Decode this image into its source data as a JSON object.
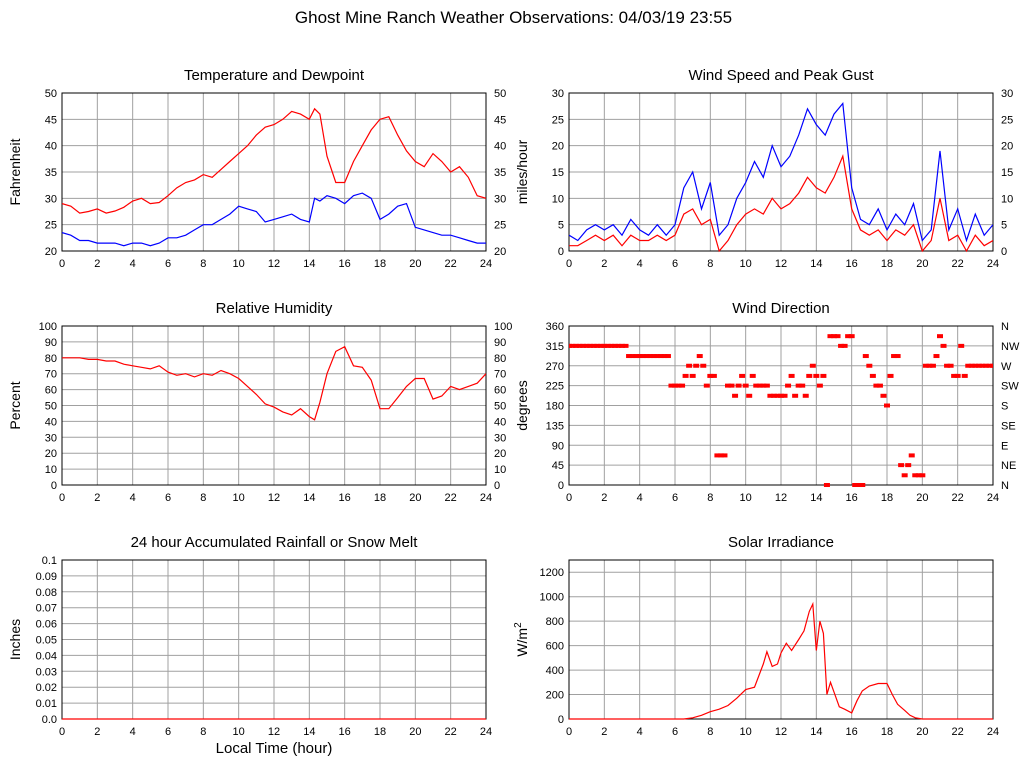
{
  "page_title": "Ghost Mine Ranch Weather Observations: 04/03/19 23:55",
  "colors": {
    "red": "#ff0000",
    "blue": "#0000ff",
    "grid": "#a0a0a0",
    "axis": "#000000"
  },
  "chart_data": [
    {
      "id": "temp",
      "type": "line",
      "title": "Temperature and Dewpoint",
      "xlabel": "",
      "ylabel": "Fahrenheit",
      "xlim": [
        0,
        24
      ],
      "ylim": [
        20,
        50
      ],
      "xticks": [
        "0",
        "2",
        "4",
        "6",
        "8",
        "10",
        "12",
        "14",
        "16",
        "18",
        "20",
        "22",
        "24"
      ],
      "yticks": [
        "20",
        "25",
        "30",
        "35",
        "40",
        "45",
        "50"
      ],
      "right_ticks": [
        "20",
        "25",
        "30",
        "35",
        "40",
        "45",
        "50"
      ],
      "grid": true,
      "series": [
        {
          "color": "#ff0000",
          "x": [
            0,
            0.5,
            1,
            1.5,
            2,
            2.5,
            3,
            3.5,
            4,
            4.5,
            5,
            5.5,
            6,
            6.5,
            7,
            7.5,
            8,
            8.5,
            9,
            9.5,
            10,
            10.5,
            11,
            11.5,
            12,
            12.5,
            13,
            13.5,
            14,
            14.3,
            14.6,
            15,
            15.5,
            16,
            16.5,
            17,
            17.5,
            18,
            18.5,
            19,
            19.5,
            20,
            20.5,
            21,
            21.5,
            22,
            22.5,
            23,
            23.5,
            24
          ],
          "y": [
            29,
            28.5,
            27.2,
            27.5,
            28,
            27.2,
            27.6,
            28.3,
            29.5,
            30,
            29,
            29.2,
            30.5,
            32,
            33,
            33.5,
            34.5,
            34,
            35.5,
            37,
            38.5,
            40,
            42,
            43.5,
            44,
            45,
            46.5,
            46,
            45,
            47,
            46,
            38,
            33,
            33,
            37,
            40,
            43,
            45,
            45.5,
            42,
            39,
            37,
            36,
            38.5,
            37,
            35,
            36,
            34,
            30.5,
            30
          ]
        },
        {
          "color": "#0000ff",
          "x": [
            0,
            0.5,
            1,
            1.5,
            2,
            2.5,
            3,
            3.5,
            4,
            4.5,
            5,
            5.5,
            6,
            6.5,
            7,
            7.5,
            8,
            8.5,
            9,
            9.5,
            10,
            10.5,
            11,
            11.5,
            12,
            12.5,
            13,
            13.5,
            14,
            14.3,
            14.6,
            15,
            15.5,
            16,
            16.5,
            17,
            17.5,
            18,
            18.5,
            19,
            19.5,
            20,
            20.5,
            21,
            21.5,
            22,
            22.5,
            23,
            23.5,
            24
          ],
          "y": [
            23.5,
            23,
            22,
            22,
            21.5,
            21.5,
            21.5,
            21,
            21.5,
            21.5,
            21,
            21.5,
            22.5,
            22.5,
            23,
            24,
            25,
            25,
            26,
            27,
            28.5,
            28,
            27.5,
            25.5,
            26,
            26.5,
            27,
            26,
            25.5,
            30,
            29.5,
            30.5,
            30,
            29,
            30.5,
            31,
            30,
            26,
            27,
            28.5,
            29,
            24.5,
            24,
            23.5,
            23,
            23,
            22.5,
            22,
            21.5,
            21.5
          ]
        }
      ]
    },
    {
      "id": "wind",
      "type": "line",
      "title": "Wind Speed and Peak Gust",
      "xlabel": "",
      "ylabel": "miles/hour",
      "xlim": [
        0,
        24
      ],
      "ylim": [
        0,
        30
      ],
      "xticks": [
        "0",
        "2",
        "4",
        "6",
        "8",
        "10",
        "12",
        "14",
        "16",
        "18",
        "20",
        "22",
        "24"
      ],
      "yticks": [
        "0",
        "5",
        "10",
        "15",
        "20",
        "25",
        "30"
      ],
      "right_ticks": [
        "0",
        "5",
        "10",
        "15",
        "20",
        "25",
        "30"
      ],
      "grid": true,
      "series": [
        {
          "color": "#0000ff",
          "x": [
            0,
            0.5,
            1,
            1.5,
            2,
            2.5,
            3,
            3.5,
            4,
            4.5,
            5,
            5.5,
            6,
            6.5,
            7,
            7.5,
            8,
            8.5,
            9,
            9.5,
            10,
            10.5,
            11,
            11.5,
            12,
            12.5,
            13,
            13.5,
            14,
            14.5,
            15,
            15.5,
            16,
            16.5,
            17,
            17.5,
            18,
            18.5,
            19,
            19.5,
            20,
            20.5,
            21,
            21.5,
            22,
            22.5,
            23,
            23.5,
            24
          ],
          "y": [
            3,
            2,
            4,
            5,
            4,
            5,
            3,
            6,
            4,
            3,
            5,
            3,
            5,
            12,
            15,
            8,
            13,
            3,
            5,
            10,
            13,
            17,
            14,
            20,
            16,
            18,
            22,
            27,
            24,
            22,
            26,
            28,
            12,
            6,
            5,
            8,
            4,
            7,
            5,
            9,
            2,
            4,
            19,
            4,
            8,
            2,
            7,
            3,
            5
          ]
        },
        {
          "color": "#ff0000",
          "x": [
            0,
            0.5,
            1,
            1.5,
            2,
            2.5,
            3,
            3.5,
            4,
            4.5,
            5,
            5.5,
            6,
            6.5,
            7,
            7.5,
            8,
            8.5,
            9,
            9.5,
            10,
            10.5,
            11,
            11.5,
            12,
            12.5,
            13,
            13.5,
            14,
            14.5,
            15,
            15.5,
            16,
            16.5,
            17,
            17.5,
            18,
            18.5,
            19,
            19.5,
            20,
            20.5,
            21,
            21.5,
            22,
            22.5,
            23,
            23.5,
            24
          ],
          "y": [
            1,
            1,
            2,
            3,
            2,
            3,
            1,
            3,
            2,
            2,
            3,
            2,
            3,
            7,
            8,
            5,
            6,
            0,
            2,
            5,
            7,
            8,
            7,
            10,
            8,
            9,
            11,
            14,
            12,
            11,
            14,
            18,
            8,
            4,
            3,
            4,
            2,
            4,
            3,
            5,
            0,
            2,
            10,
            2,
            3,
            0,
            3,
            1,
            2
          ]
        }
      ]
    },
    {
      "id": "rh",
      "type": "line",
      "title": "Relative Humidity",
      "xlabel": "",
      "ylabel": "Percent",
      "xlim": [
        0,
        24
      ],
      "ylim": [
        0,
        100
      ],
      "xticks": [
        "0",
        "2",
        "4",
        "6",
        "8",
        "10",
        "12",
        "14",
        "16",
        "18",
        "20",
        "22",
        "24"
      ],
      "yticks": [
        "0",
        "10",
        "20",
        "30",
        "40",
        "50",
        "60",
        "70",
        "80",
        "90",
        "100"
      ],
      "right_ticks": [
        "0",
        "10",
        "20",
        "30",
        "40",
        "50",
        "60",
        "70",
        "80",
        "90",
        "100"
      ],
      "grid": true,
      "series": [
        {
          "color": "#ff0000",
          "x": [
            0,
            0.5,
            1,
            1.5,
            2,
            2.5,
            3,
            3.5,
            4,
            4.5,
            5,
            5.5,
            6,
            6.5,
            7,
            7.5,
            8,
            8.5,
            9,
            9.5,
            10,
            10.5,
            11,
            11.5,
            12,
            12.5,
            13,
            13.5,
            14,
            14.3,
            14.6,
            15,
            15.5,
            16,
            16.5,
            17,
            17.5,
            18,
            18.5,
            19,
            19.5,
            20,
            20.5,
            21,
            21.5,
            22,
            22.5,
            23,
            23.5,
            24
          ],
          "y": [
            80,
            80,
            80,
            79,
            79,
            78,
            78,
            76,
            75,
            74,
            73,
            75,
            71,
            69,
            70,
            68,
            70,
            69,
            72,
            70,
            67,
            62,
            57,
            51,
            49,
            46,
            44,
            48,
            43,
            41,
            52,
            70,
            84,
            87,
            75,
            74,
            66,
            48,
            48,
            55,
            62,
            67,
            67,
            54,
            56,
            62,
            60,
            62,
            64,
            70
          ]
        }
      ]
    },
    {
      "id": "dir",
      "type": "scatter",
      "title": "Wind Direction",
      "xlabel": "",
      "ylabel": "degrees",
      "xlim": [
        0,
        24
      ],
      "ylim": [
        0,
        360
      ],
      "xticks": [
        "0",
        "2",
        "4",
        "6",
        "8",
        "10",
        "12",
        "14",
        "16",
        "18",
        "20",
        "22",
        "24"
      ],
      "yticks": [
        "0",
        "45",
        "90",
        "135",
        "180",
        "225",
        "270",
        "315",
        "360"
      ],
      "right_ticks": [
        "N",
        "NE",
        "E",
        "SE",
        "S",
        "SW",
        "W",
        "NW",
        "N"
      ],
      "grid": true,
      "series": [
        {
          "color": "#ff0000",
          "x": [
            0,
            0.2,
            0.4,
            0.6,
            0.8,
            1,
            1.2,
            1.4,
            1.6,
            1.8,
            2,
            2.2,
            2.4,
            2.6,
            2.8,
            3,
            3.2,
            3.4,
            3.6,
            3.8,
            4,
            4.2,
            4.4,
            4.6,
            4.8,
            5,
            5.2,
            5.4,
            5.6,
            5.8,
            6,
            6.2,
            6.4,
            6.6,
            6.8,
            7,
            7.2,
            7.4,
            7.6,
            7.8,
            8,
            8.2,
            8.4,
            8.6,
            8.8,
            9,
            9.2,
            9.4,
            9.6,
            9.8,
            10,
            10.2,
            10.4,
            10.6,
            10.8,
            11,
            11.2,
            11.4,
            11.6,
            11.8,
            12,
            12.2,
            12.4,
            12.6,
            12.8,
            13,
            13.2,
            13.4,
            13.6,
            13.8,
            14,
            14.2,
            14.4,
            14.6,
            14.8,
            15,
            15.2,
            15.4,
            15.6,
            15.8,
            16,
            16.2,
            16.4,
            16.6,
            16.8,
            17,
            17.2,
            17.4,
            17.6,
            17.8,
            18,
            18.2,
            18.4,
            18.6,
            18.8,
            19,
            19.2,
            19.4,
            19.6,
            19.8,
            20,
            20.2,
            20.4,
            20.6,
            20.8,
            21,
            21.2,
            21.4,
            21.6,
            21.8,
            22,
            22.2,
            22.4,
            22.6,
            22.8,
            23,
            23.2,
            23.4,
            23.6,
            23.8,
            24
          ],
          "y": [
            315,
            315,
            315,
            315,
            315,
            315,
            315,
            315,
            315,
            315,
            315,
            315,
            315,
            315,
            315,
            315,
            315,
            292,
            292,
            292,
            292,
            292,
            292,
            292,
            292,
            292,
            292,
            292,
            292,
            225,
            225,
            225,
            225,
            247,
            270,
            247,
            270,
            292,
            270,
            225,
            247,
            247,
            67,
            67,
            67,
            225,
            225,
            202,
            225,
            247,
            225,
            202,
            247,
            225,
            225,
            225,
            225,
            202,
            202,
            202,
            202,
            202,
            225,
            247,
            202,
            225,
            225,
            202,
            247,
            270,
            247,
            225,
            247,
            0,
            337,
            337,
            337,
            315,
            315,
            337,
            337,
            0,
            0,
            0,
            292,
            270,
            247,
            225,
            225,
            202,
            180,
            247,
            292,
            292,
            45,
            22,
            45,
            67,
            22,
            22,
            22,
            270,
            270,
            270,
            292,
            337,
            315,
            270,
            270,
            247,
            247,
            315,
            247,
            270,
            270,
            270,
            270,
            270,
            270,
            270,
            270
          ]
        }
      ]
    },
    {
      "id": "rain",
      "type": "line",
      "title": "24 hour Accumulated Rainfall or Snow Melt",
      "xlabel": "Local Time (hour)",
      "ylabel": "Inches",
      "xlim": [
        0,
        24
      ],
      "ylim": [
        0,
        0.1
      ],
      "xticks": [
        "0",
        "2",
        "4",
        "6",
        "8",
        "10",
        "12",
        "14",
        "16",
        "18",
        "20",
        "22",
        "24"
      ],
      "yticks": [
        "0.0",
        "0.01",
        "0.02",
        "0.03",
        "0.04",
        "0.05",
        "0.06",
        "0.07",
        "0.08",
        "0.09",
        "0.1"
      ],
      "right_ticks": [],
      "grid": true,
      "series": [
        {
          "color": "#ff0000",
          "x": [
            0,
            24
          ],
          "y": [
            0,
            0
          ]
        }
      ]
    },
    {
      "id": "solar",
      "type": "line",
      "title": "Solar Irradiance",
      "xlabel": "",
      "ylabel": "W/m",
      "ylabel_sup": "2",
      "xlim": [
        0,
        24
      ],
      "ylim": [
        0,
        1300
      ],
      "xticks": [
        "0",
        "2",
        "4",
        "6",
        "8",
        "10",
        "12",
        "14",
        "16",
        "18",
        "20",
        "22",
        "24"
      ],
      "yticks": [
        "0",
        "200",
        "400",
        "600",
        "800",
        "1000",
        "1200"
      ],
      "right_ticks": [],
      "grid": true,
      "series": [
        {
          "color": "#ff0000",
          "x": [
            0,
            6.5,
            7,
            7.5,
            8,
            8.5,
            9,
            9.5,
            10,
            10.5,
            11,
            11.2,
            11.5,
            11.8,
            12,
            12.3,
            12.6,
            13,
            13.3,
            13.6,
            13.8,
            14,
            14.2,
            14.4,
            14.6,
            14.8,
            15,
            15.3,
            15.6,
            16,
            16.3,
            16.6,
            17,
            17.5,
            18,
            18.3,
            18.6,
            19,
            19.3,
            19.6,
            20,
            24
          ],
          "y": [
            0,
            0,
            10,
            30,
            60,
            80,
            110,
            170,
            240,
            260,
            450,
            550,
            430,
            450,
            540,
            620,
            560,
            650,
            720,
            880,
            940,
            560,
            800,
            700,
            200,
            300,
            220,
            100,
            80,
            50,
            150,
            230,
            270,
            290,
            290,
            200,
            120,
            70,
            30,
            10,
            0,
            0
          ]
        }
      ]
    }
  ]
}
